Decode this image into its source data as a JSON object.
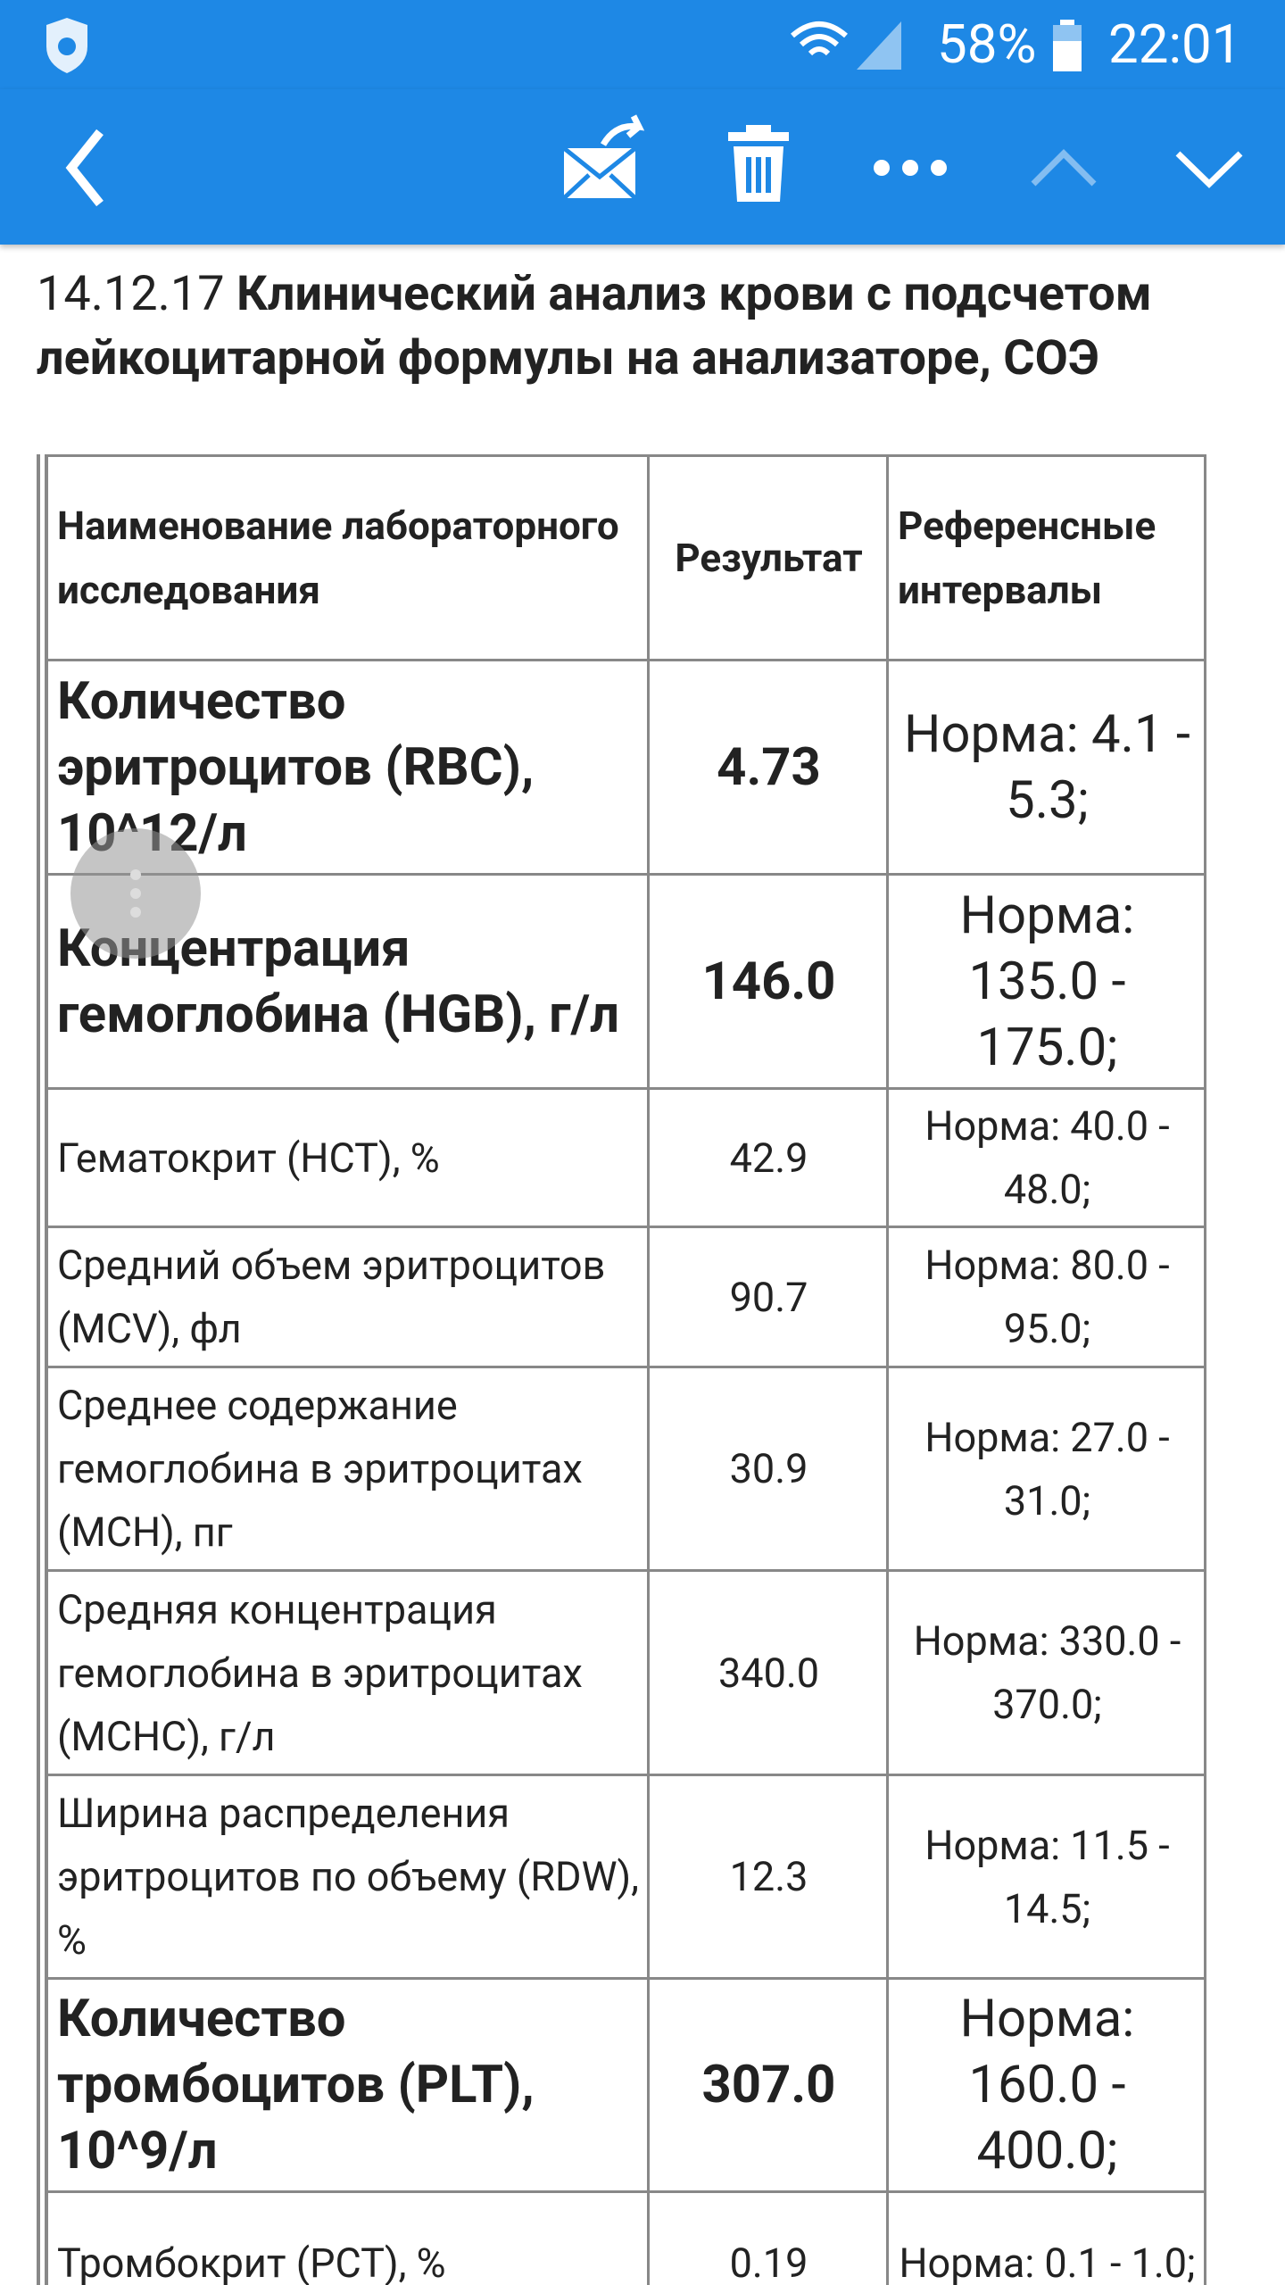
{
  "status_bar": {
    "battery": "58%",
    "time": "22:01"
  },
  "message": {
    "date": "14.12.17",
    "title": "Клинический анализ крови с подсчетом лейкоцитарной формулы на анализаторе, СОЭ"
  },
  "table": {
    "header": [
      "Наименование лабораторного исследования",
      "Результат",
      "Референсные интервалы"
    ],
    "rows": [
      [
        "Количество эритроцитов (RBC), 10^12/л",
        "4.73",
        "Норма: 4.1 - 5.3;"
      ],
      [
        "Концентрация гемоглобина (HGB), г/л",
        "146.0",
        "Норма: 135.0 - 175.0;"
      ],
      [
        "Гематокрит (HCT), %",
        "42.9",
        "Норма: 40.0 - 48.0;"
      ],
      [
        "Средний объем эритроцитов (MCV), фл",
        "90.7",
        "Норма: 80.0 - 95.0;"
      ],
      [
        "Среднее содержание гемоглобина в эритроцитах (MCH), пг",
        "30.9",
        "Норма: 27.0 - 31.0;"
      ],
      [
        "Средняя концентрация гемоглобина в эритроцитах (MCHC), г/л",
        "340.0",
        "Норма: 330.0 - 370.0;"
      ],
      [
        "Ширина распределения эритроцитов по объему (RDW), %",
        "12.3",
        "Норма: 11.5 - 14.5;"
      ],
      [
        "Количество тромбоцитов (PLT), 10^9/л",
        "307.0",
        "Норма: 160.0 - 400.0;"
      ],
      [
        "Тромбокрит (PCT), %",
        "0.19",
        "Норма: 0.1 - 1.0;"
      ]
    ]
  }
}
